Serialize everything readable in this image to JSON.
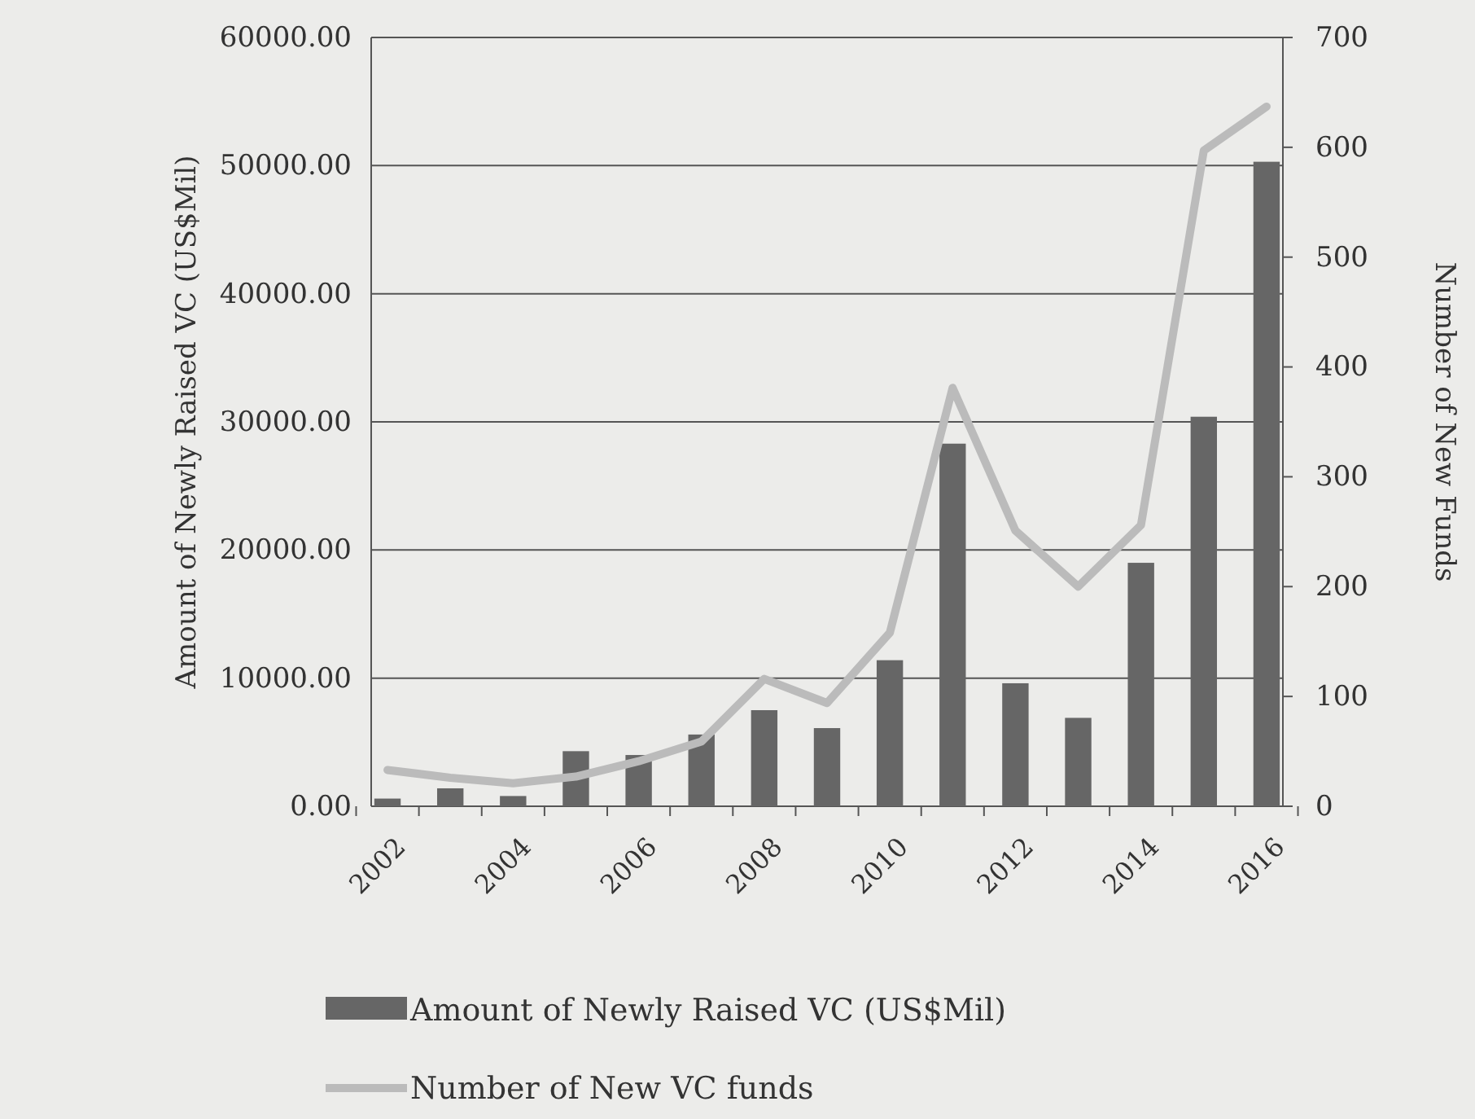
{
  "chart_data": {
    "type": "bar",
    "categories": [
      "2002",
      null,
      "2004",
      null,
      "2006",
      null,
      "2008",
      null,
      "2010",
      null,
      "2012",
      null,
      "2014",
      null,
      "2016"
    ],
    "series": [
      {
        "name": "Amount of Newly Raised VC (US$Mil)",
        "color": "#666666",
        "values": [
          600,
          1400,
          800,
          4300,
          4000,
          5600,
          7500,
          6100,
          11400,
          28300,
          9600,
          6900,
          19000,
          30400,
          50300
        ]
      },
      {
        "name": "Number of New VC funds",
        "type": "line",
        "axis": "y2",
        "color": "#bbbbbb",
        "values": [
          33,
          26,
          21,
          27,
          41,
          59,
          116,
          94,
          158,
          381,
          251,
          200,
          256,
          597,
          637
        ]
      }
    ],
    "ylabel": "Amount of Newly Raised VC (US$Mil)",
    "y2label": "Number of New Funds",
    "ylim": [
      0,
      60000
    ],
    "yticks": [
      {
        "value": 0,
        "label": "0.00"
      },
      {
        "value": 10000,
        "label": "10000.00"
      },
      {
        "value": 20000,
        "label": "20000.00"
      },
      {
        "value": 30000,
        "label": "30000.00"
      },
      {
        "value": 40000,
        "label": "40000.00"
      },
      {
        "value": 50000,
        "label": "50000.00"
      },
      {
        "value": 60000,
        "label": "60000.00"
      }
    ],
    "y2lim": [
      0,
      700
    ],
    "y2ticks": [
      0,
      100,
      200,
      300,
      400,
      500,
      600,
      700
    ],
    "grid": "y",
    "legend": "bottom",
    "marker": "none"
  }
}
